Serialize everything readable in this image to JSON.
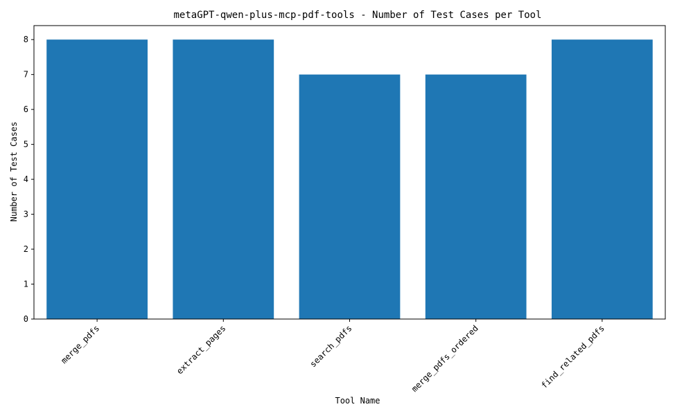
{
  "chart_data": {
    "type": "bar",
    "title": "metaGPT-qwen-plus-mcp-pdf-tools - Number of Test Cases per Tool",
    "xlabel": "Tool Name",
    "ylabel": "Number of Test Cases",
    "categories": [
      "merge_pdfs",
      "extract_pages",
      "search_pdfs",
      "merge_pdfs_ordered",
      "find_related_pdfs"
    ],
    "values": [
      8,
      8,
      7,
      7,
      8
    ],
    "ylim": [
      0,
      8.4
    ],
    "yticks": [
      0,
      1,
      2,
      3,
      4,
      5,
      6,
      7,
      8
    ],
    "bar_color": "#1f77b4",
    "grid": false,
    "legend": "none"
  }
}
